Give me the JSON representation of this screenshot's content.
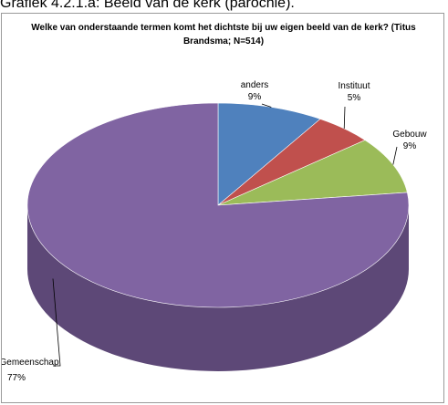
{
  "page_caption": "Grafiek  4.2.1.a: Beeld van de kerk (parochie).",
  "chart_data": {
    "type": "pie",
    "title": "Welke van onderstaande termen komt het dichtste bij uw eigen beeld van de kerk? (Titus Brandsma; N=514)",
    "three_d": true,
    "legend": "none",
    "slices": [
      {
        "name": "anders",
        "value": 9,
        "label": "9%",
        "color": "#4f81bd",
        "side_color": "#3a6393"
      },
      {
        "name": "Instituut",
        "value": 5,
        "label": "5%",
        "color": "#c0504d",
        "side_color": "#943c3a"
      },
      {
        "name": "Gebouw",
        "value": 9,
        "label": "9%",
        "color": "#9bbb59",
        "side_color": "#769044"
      },
      {
        "name": "Gemeenschap",
        "value": 77,
        "label": "77%",
        "color": "#8064a2",
        "side_color": "#5d4877"
      }
    ]
  }
}
